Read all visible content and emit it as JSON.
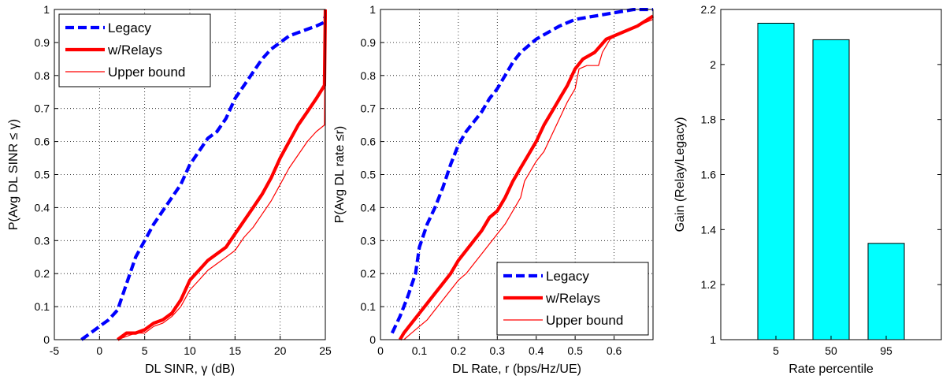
{
  "chart_data": [
    {
      "type": "line",
      "xlabel": "DL SINR, γ (dB)",
      "ylabel": "P(Avg DL SINR ≤ γ)",
      "xlim": [
        -5,
        25
      ],
      "ylim": [
        0,
        1
      ],
      "xticks": [
        -5,
        0,
        5,
        10,
        15,
        20,
        25
      ],
      "xtick_labels": [
        "-5",
        "0",
        "5",
        "10",
        "15",
        "20",
        "25"
      ],
      "yticks": [
        0,
        0.1,
        0.2,
        0.3,
        0.4,
        0.5,
        0.6,
        0.7,
        0.8,
        0.9,
        1
      ],
      "ytick_labels": [
        "0",
        "0.1",
        "0.2",
        "0.3",
        "0.4",
        "0.5",
        "0.6",
        "0.7",
        "0.8",
        "0.9",
        "1"
      ],
      "grid": true,
      "legend_position": "top-left",
      "series": [
        {
          "name": "Legacy",
          "color": "#0000ff",
          "style": "dashed-thick",
          "x": [
            -2,
            -1,
            0,
            1,
            2,
            3,
            4,
            5,
            6,
            7,
            8,
            9,
            10,
            11,
            12,
            13,
            14,
            15,
            16,
            17,
            18,
            19,
            20,
            21,
            22,
            23,
            24,
            24.8,
            25
          ],
          "y": [
            0,
            0.02,
            0.04,
            0.06,
            0.09,
            0.17,
            0.25,
            0.3,
            0.35,
            0.39,
            0.43,
            0.47,
            0.53,
            0.57,
            0.61,
            0.63,
            0.67,
            0.73,
            0.77,
            0.81,
            0.85,
            0.88,
            0.9,
            0.92,
            0.93,
            0.94,
            0.95,
            0.96,
            0.98
          ]
        },
        {
          "name": "w/Relays",
          "color": "#ff0000",
          "style": "solid-thick",
          "x": [
            2,
            3,
            4,
            5,
            6,
            7,
            8,
            9,
            10,
            11,
            12,
            13,
            14,
            15,
            16,
            17,
            18,
            19,
            20,
            21,
            22,
            23,
            24,
            24.9,
            25
          ],
          "y": [
            0,
            0.02,
            0.02,
            0.03,
            0.05,
            0.06,
            0.08,
            0.12,
            0.18,
            0.21,
            0.24,
            0.26,
            0.28,
            0.32,
            0.36,
            0.4,
            0.44,
            0.49,
            0.55,
            0.6,
            0.65,
            0.69,
            0.73,
            0.77,
            1.0
          ]
        },
        {
          "name": "Upper bound",
          "color": "#ff0000",
          "style": "solid-thin",
          "x": [
            2,
            3,
            4,
            5,
            6,
            7,
            8,
            9,
            10,
            11,
            12,
            13,
            14,
            15,
            16,
            17,
            18,
            19,
            20,
            21,
            22,
            23,
            24,
            24.9,
            25
          ],
          "y": [
            0,
            0.01,
            0.02,
            0.02,
            0.04,
            0.05,
            0.07,
            0.1,
            0.15,
            0.18,
            0.21,
            0.23,
            0.25,
            0.27,
            0.31,
            0.34,
            0.38,
            0.42,
            0.47,
            0.52,
            0.56,
            0.6,
            0.63,
            0.65,
            1.0
          ]
        }
      ]
    },
    {
      "type": "line",
      "xlabel": "DL Rate, r (bps/Hz/UE)",
      "ylabel": "P(Avg DL rate ≤r)",
      "xlim": [
        0,
        0.7
      ],
      "ylim": [
        0,
        1
      ],
      "xticks": [
        0,
        0.1,
        0.2,
        0.3,
        0.4,
        0.5,
        0.6
      ],
      "xtick_labels": [
        "0",
        "0.1",
        "0.2",
        "0.3",
        "0.4",
        "0.5",
        "0.6"
      ],
      "yticks": [
        0,
        0.1,
        0.2,
        0.3,
        0.4,
        0.5,
        0.6,
        0.7,
        0.8,
        0.9,
        1
      ],
      "ytick_labels": [
        "0",
        "0.1",
        "0.2",
        "0.3",
        "0.4",
        "0.5",
        "0.6",
        "0.7",
        "0.8",
        "0.9",
        "1"
      ],
      "grid": true,
      "legend_position": "bottom-right",
      "series": [
        {
          "name": "Legacy",
          "color": "#0000ff",
          "style": "dashed-thick",
          "x": [
            0.03,
            0.05,
            0.07,
            0.09,
            0.1,
            0.12,
            0.14,
            0.16,
            0.18,
            0.2,
            0.22,
            0.24,
            0.26,
            0.28,
            0.3,
            0.32,
            0.34,
            0.36,
            0.38,
            0.4,
            0.43,
            0.46,
            0.5,
            0.55,
            0.6,
            0.65,
            0.7
          ],
          "y": [
            0.02,
            0.07,
            0.13,
            0.2,
            0.28,
            0.35,
            0.4,
            0.46,
            0.53,
            0.59,
            0.63,
            0.66,
            0.69,
            0.73,
            0.76,
            0.8,
            0.84,
            0.87,
            0.89,
            0.91,
            0.93,
            0.95,
            0.97,
            0.98,
            0.99,
            1.0,
            1.0
          ]
        },
        {
          "name": "w/Relays",
          "color": "#ff0000",
          "style": "solid-thick",
          "x": [
            0.05,
            0.06,
            0.08,
            0.1,
            0.12,
            0.14,
            0.16,
            0.18,
            0.2,
            0.22,
            0.24,
            0.26,
            0.28,
            0.3,
            0.32,
            0.34,
            0.36,
            0.38,
            0.4,
            0.42,
            0.44,
            0.46,
            0.48,
            0.5,
            0.52,
            0.55,
            0.58,
            0.62,
            0.66,
            0.7
          ],
          "y": [
            0,
            0.02,
            0.05,
            0.08,
            0.11,
            0.14,
            0.17,
            0.2,
            0.24,
            0.27,
            0.3,
            0.33,
            0.37,
            0.39,
            0.43,
            0.48,
            0.52,
            0.56,
            0.6,
            0.65,
            0.69,
            0.73,
            0.77,
            0.82,
            0.85,
            0.87,
            0.91,
            0.93,
            0.95,
            0.98
          ]
        },
        {
          "name": "Upper bound",
          "color": "#ff0000",
          "style": "solid-thin",
          "x": [
            0.06,
            0.08,
            0.1,
            0.12,
            0.14,
            0.16,
            0.18,
            0.2,
            0.22,
            0.24,
            0.26,
            0.28,
            0.3,
            0.32,
            0.34,
            0.36,
            0.37,
            0.38,
            0.4,
            0.42,
            0.44,
            0.46,
            0.48,
            0.5,
            0.51,
            0.53,
            0.56,
            0.57,
            0.59,
            0.62,
            0.66,
            0.7
          ],
          "y": [
            0,
            0.02,
            0.04,
            0.06,
            0.09,
            0.12,
            0.15,
            0.18,
            0.2,
            0.23,
            0.26,
            0.29,
            0.32,
            0.35,
            0.39,
            0.43,
            0.48,
            0.5,
            0.54,
            0.57,
            0.62,
            0.67,
            0.72,
            0.76,
            0.82,
            0.83,
            0.83,
            0.87,
            0.91,
            0.93,
            0.95,
            0.97
          ]
        }
      ]
    },
    {
      "type": "bar",
      "xlabel": "Rate percentile",
      "ylabel": "Gain (Relay/Legacy)",
      "categories": [
        "5",
        "50",
        "95"
      ],
      "values": [
        2.15,
        2.09,
        1.35
      ],
      "ylim": [
        1,
        2.2
      ],
      "yticks": [
        1,
        1.2,
        1.4,
        1.6,
        1.8,
        2,
        2.2
      ],
      "ytick_labels": [
        "1",
        "1.2",
        "1.4",
        "1.6",
        "1.8",
        "2",
        "2.2"
      ],
      "bar_color": "#00ffff",
      "grid": false
    }
  ]
}
